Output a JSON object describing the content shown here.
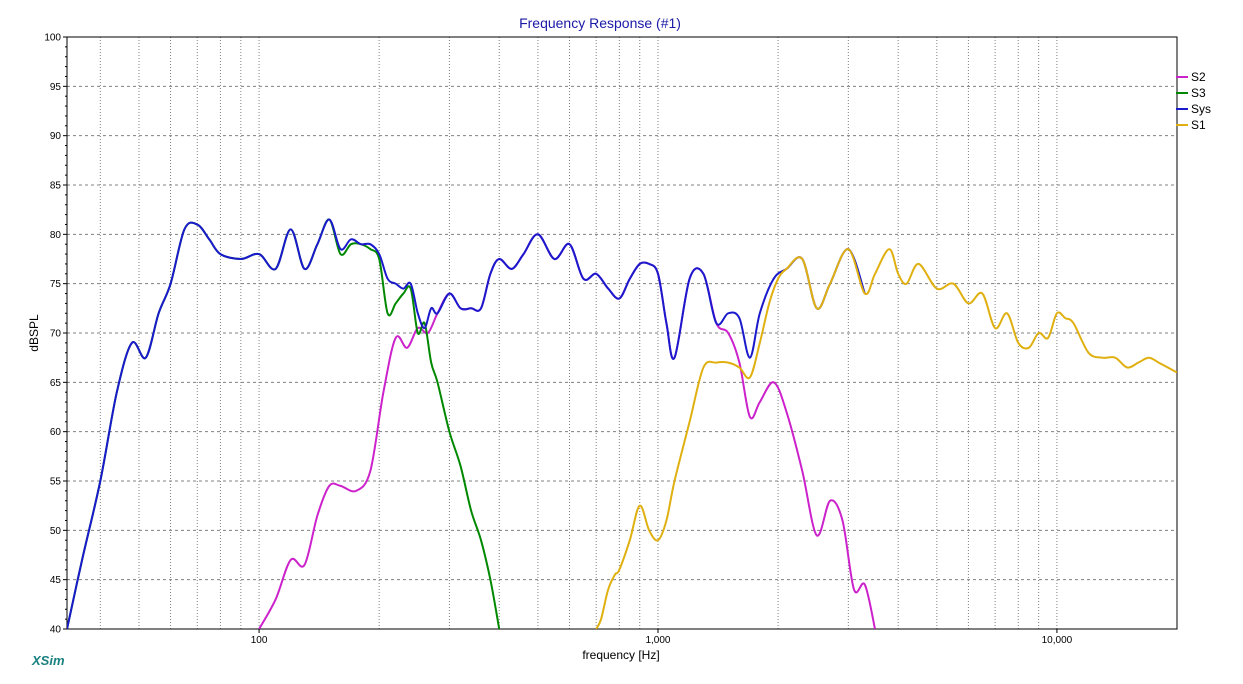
{
  "app": {
    "brand": "XSim"
  },
  "chart_data": {
    "type": "line",
    "title": "Frequency Response (#1)",
    "xlabel": "frequency [Hz]",
    "ylabel": "dBSPL",
    "xscale": "log",
    "xlim": [
      33,
      20000
    ],
    "ylim": [
      40,
      100
    ],
    "grid": true,
    "legend_position": "right",
    "y_ticks": [
      40,
      45,
      50,
      55,
      60,
      65,
      70,
      75,
      80,
      85,
      90,
      95,
      100
    ],
    "y_tick_labels": [
      "40",
      "45",
      "50",
      "55",
      "60",
      "65",
      "70",
      "75",
      "80",
      "85",
      "90",
      "95",
      "100"
    ],
    "x_ticks": [
      100,
      1000,
      10000
    ],
    "x_tick_labels": [
      "100",
      "1,000",
      "10,000"
    ],
    "series": [
      {
        "name": "S2",
        "color": "#cc22cc",
        "x": [
          100,
          110,
          120,
          130,
          140,
          150,
          160,
          175,
          190,
          205,
          220,
          235,
          250,
          265,
          280,
          300,
          320,
          340,
          360,
          380,
          400,
          430,
          460,
          500,
          550,
          600,
          650,
          700,
          750,
          800,
          850,
          900,
          950,
          1000,
          1050,
          1100,
          1200,
          1300,
          1400,
          1500,
          1600,
          1700,
          1800,
          1950,
          2100,
          2300,
          2500,
          2700,
          2900,
          3100,
          3300,
          3500
        ],
        "values": [
          40,
          43,
          47,
          46.5,
          51.5,
          54.5,
          54.5,
          54,
          56,
          64,
          69.5,
          68.5,
          70.5,
          70,
          72,
          74,
          72.5,
          72.5,
          72.5,
          76,
          77.5,
          76.5,
          78,
          80,
          77.5,
          79,
          75.5,
          76,
          74.5,
          73.5,
          75.5,
          77,
          77,
          76,
          71,
          67.5,
          75.5,
          76,
          71,
          70,
          67,
          61.5,
          63,
          65,
          62,
          56,
          49.5,
          53,
          51,
          44,
          44.5,
          40
        ]
      },
      {
        "name": "S3",
        "color": "#008800",
        "x": [
          33,
          36,
          40,
          44,
          48,
          52,
          56,
          60,
          65,
          70,
          75,
          80,
          90,
          100,
          110,
          120,
          130,
          140,
          150,
          160,
          170,
          180,
          190,
          200,
          210,
          220,
          230,
          240,
          250,
          260,
          270,
          280,
          300,
          320,
          340,
          360,
          380,
          400
        ],
        "values": [
          40,
          47,
          55,
          64,
          69,
          67.5,
          72,
          75,
          80.5,
          81,
          79.5,
          78,
          77.5,
          78,
          76.5,
          80.5,
          76.5,
          79,
          81.5,
          78,
          79,
          79,
          78.5,
          77.5,
          72,
          73,
          74,
          74.5,
          70,
          71,
          67,
          65,
          60,
          56.5,
          52,
          49,
          45,
          40
        ]
      },
      {
        "name": "Sys",
        "color": "#1a1acc",
        "x": [
          33,
          36,
          40,
          44,
          48,
          52,
          56,
          60,
          65,
          70,
          75,
          80,
          90,
          100,
          110,
          120,
          130,
          140,
          150,
          160,
          170,
          180,
          190,
          200,
          210,
          220,
          230,
          240,
          250,
          260,
          270,
          280,
          300,
          320,
          340,
          360,
          380,
          400,
          430,
          460,
          500,
          550,
          600,
          650,
          700,
          750,
          800,
          850,
          900,
          950,
          1000,
          1050,
          1100,
          1200,
          1300,
          1400,
          1500,
          1600,
          1700,
          1800,
          1950,
          2100,
          2300,
          2500,
          2700,
          3000,
          3300
        ],
        "values": [
          40,
          47,
          55,
          64,
          69,
          67.5,
          72,
          75,
          80.5,
          81,
          79.5,
          78,
          77.5,
          78,
          76.5,
          80.5,
          76.5,
          79,
          81.5,
          78.5,
          79.5,
          79,
          79,
          78,
          75.5,
          75,
          74.5,
          75,
          72,
          70.5,
          72.5,
          72,
          74,
          72.5,
          72.5,
          72.5,
          76,
          77.5,
          76.5,
          78,
          80,
          77.5,
          79,
          75.5,
          76,
          74.5,
          73.5,
          75.5,
          77,
          77,
          76,
          71,
          67.5,
          75.5,
          76,
          71,
          72,
          71.5,
          67.5,
          72,
          75.5,
          76.5,
          77.5,
          72.5,
          75,
          78.5,
          74
        ]
      },
      {
        "name": "S1",
        "color": "#e0b010",
        "x": [
          700,
          720,
          750,
          780,
          800,
          850,
          900,
          950,
          1000,
          1050,
          1100,
          1200,
          1300,
          1400,
          1500,
          1600,
          1700,
          1800,
          1900,
          2000,
          2100,
          2300,
          2500,
          2700,
          3000,
          3300,
          3500,
          3800,
          4000,
          4200,
          4500,
          5000,
          5500,
          6000,
          6500,
          7000,
          7500,
          8000,
          8500,
          9000,
          9500,
          10000,
          10500,
          11000,
          12000,
          13000,
          14000,
          15000,
          16000,
          17000,
          18000,
          20000
        ],
        "values": [
          40,
          41,
          44,
          45.5,
          46,
          49,
          52.5,
          50,
          49,
          51,
          55,
          61,
          66.5,
          67,
          67,
          66.5,
          65.5,
          69,
          73,
          75.5,
          76.5,
          77.5,
          72.5,
          75,
          78.5,
          74,
          76,
          78.5,
          76,
          75,
          77,
          74.5,
          75,
          73,
          74,
          70.5,
          72,
          69,
          68.5,
          70,
          69.5,
          72,
          71.5,
          71,
          68,
          67.5,
          67.5,
          66.5,
          67,
          67.5,
          67,
          66
        ]
      }
    ]
  }
}
